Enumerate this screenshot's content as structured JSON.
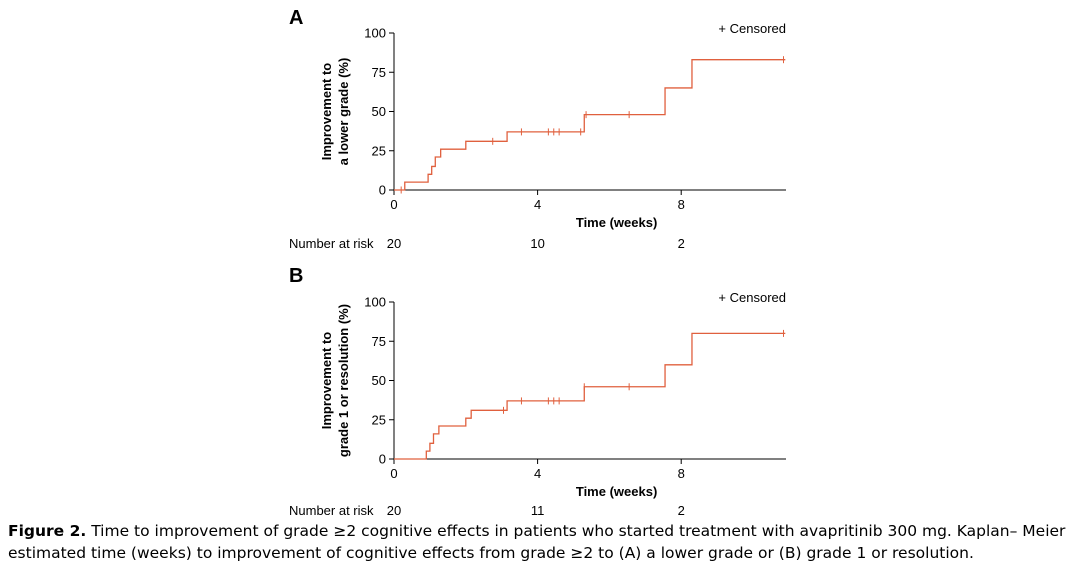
{
  "chart_data": [
    {
      "type": "line",
      "panel": "A",
      "ylabel_line1": "Improvement to",
      "ylabel_line2": "a lower grade (%)",
      "xlabel": "Time (weeks)",
      "xlim": [
        0,
        10.9
      ],
      "ylim": [
        0,
        100
      ],
      "xticks": [
        0,
        4,
        8
      ],
      "yticks": [
        0,
        25,
        50,
        75,
        100
      ],
      "legend": "+ Censored",
      "legend_position": "top-right",
      "risk_label": "Number at risk",
      "risk_counts": [
        {
          "x": 0,
          "n": "20"
        },
        {
          "x": 4,
          "n": "10"
        },
        {
          "x": 8,
          "n": "2"
        }
      ],
      "steps": [
        {
          "x": 0,
          "y": 0
        },
        {
          "x": 0.3,
          "y": 5
        },
        {
          "x": 0.95,
          "y": 10
        },
        {
          "x": 1.05,
          "y": 15
        },
        {
          "x": 1.15,
          "y": 21
        },
        {
          "x": 1.3,
          "y": 26
        },
        {
          "x": 2.0,
          "y": 31
        },
        {
          "x": 3.15,
          "y": 37
        },
        {
          "x": 5.3,
          "y": 48
        },
        {
          "x": 7.55,
          "y": 65
        },
        {
          "x": 8.3,
          "y": 83
        },
        {
          "x": 10.9,
          "y": 83
        }
      ],
      "censored": [
        {
          "x": 0.2,
          "y": 0
        },
        {
          "x": 2.75,
          "y": 31
        },
        {
          "x": 3.55,
          "y": 37
        },
        {
          "x": 4.3,
          "y": 37
        },
        {
          "x": 4.45,
          "y": 37
        },
        {
          "x": 4.6,
          "y": 37
        },
        {
          "x": 5.2,
          "y": 37
        },
        {
          "x": 5.35,
          "y": 48
        },
        {
          "x": 6.55,
          "y": 48
        },
        {
          "x": 10.85,
          "y": 83
        }
      ]
    },
    {
      "type": "line",
      "panel": "B",
      "ylabel_line1": "Improvement to",
      "ylabel_line2": "grade 1 or resolution (%)",
      "xlabel": "Time (weeks)",
      "xlim": [
        0,
        10.9
      ],
      "ylim": [
        0,
        100
      ],
      "xticks": [
        0,
        4,
        8
      ],
      "yticks": [
        0,
        25,
        50,
        75,
        100
      ],
      "legend": "+ Censored",
      "legend_position": "top-right",
      "risk_label": "Number at risk",
      "risk_counts": [
        {
          "x": 0,
          "n": "20"
        },
        {
          "x": 4,
          "n": "11"
        },
        {
          "x": 8,
          "n": "2"
        }
      ],
      "steps": [
        {
          "x": 0,
          "y": 0
        },
        {
          "x": 0.9,
          "y": 5
        },
        {
          "x": 1.0,
          "y": 10
        },
        {
          "x": 1.1,
          "y": 16
        },
        {
          "x": 1.25,
          "y": 21
        },
        {
          "x": 2.0,
          "y": 26
        },
        {
          "x": 2.15,
          "y": 31
        },
        {
          "x": 3.15,
          "y": 37
        },
        {
          "x": 5.3,
          "y": 46
        },
        {
          "x": 7.55,
          "y": 60
        },
        {
          "x": 8.3,
          "y": 80
        },
        {
          "x": 10.9,
          "y": 80
        }
      ],
      "censored": [
        {
          "x": 3.05,
          "y": 31
        },
        {
          "x": 3.55,
          "y": 37
        },
        {
          "x": 4.3,
          "y": 37
        },
        {
          "x": 4.45,
          "y": 37
        },
        {
          "x": 4.6,
          "y": 37
        },
        {
          "x": 5.3,
          "y": 46
        },
        {
          "x": 6.55,
          "y": 46
        },
        {
          "x": 10.85,
          "y": 80
        }
      ]
    }
  ],
  "colors": {
    "curve": "#e0603e",
    "axis": "#000000"
  },
  "caption": {
    "label": "Figure 2.",
    "text": " Time to improvement of grade ≥2 cognitive effects in patients who started treatment with avapritinib 300 mg. Kaplan– Meier estimated time (weeks) to improvement of cognitive effects from grade ≥2 to (A) a lower grade or (B) grade 1 or resolution."
  }
}
